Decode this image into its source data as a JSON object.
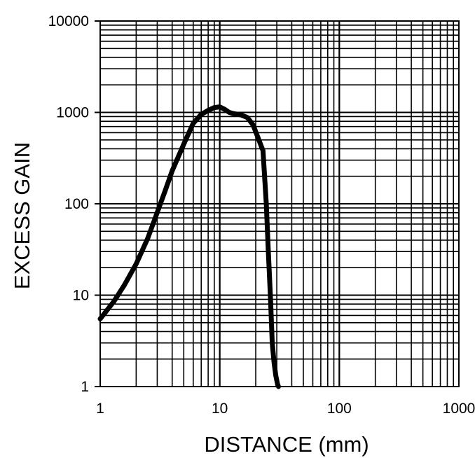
{
  "chart_data": {
    "type": "line",
    "title": "",
    "xlabel": "DISTANCE (mm)",
    "ylabel": "EXCESS GAIN",
    "x_scale": "log",
    "y_scale": "log",
    "xlim": [
      1,
      1000
    ],
    "ylim": [
      1,
      10000
    ],
    "x_ticks": [
      "1",
      "10",
      "100",
      "1000"
    ],
    "y_ticks": [
      "1",
      "10",
      "100",
      "1000",
      "10000"
    ],
    "grid": true,
    "legend": "none",
    "line_color": "#000000",
    "series": [
      {
        "x": [
          1.0,
          1.3,
          1.6,
          2.0,
          2.5,
          3.0,
          3.5,
          4.0,
          5.0,
          6.0,
          7.0,
          8.0,
          9.0,
          10.0,
          11.0,
          12.0,
          13.0,
          15.0,
          17.0,
          19.0,
          21.0,
          23.0,
          24.5,
          25.5,
          26.5,
          27.5,
          28.5,
          29.5,
          30.5,
          31.0
        ],
        "y": [
          5.5,
          8.5,
          13,
          22,
          42,
          80,
          140,
          230,
          450,
          760,
          950,
          1050,
          1130,
          1150,
          1080,
          1000,
          970,
          940,
          880,
          730,
          520,
          380,
          100,
          30,
          10,
          3,
          1.8,
          1.3,
          1.05,
          0.95
        ]
      }
    ]
  }
}
